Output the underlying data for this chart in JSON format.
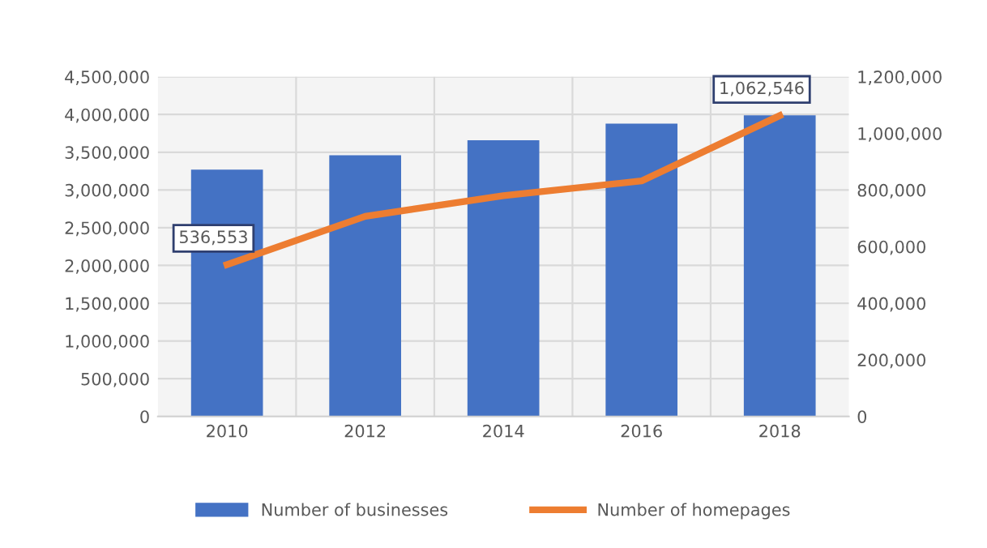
{
  "chart_data": {
    "type": "bar",
    "categories": [
      "2010",
      "2012",
      "2014",
      "2016",
      "2018"
    ],
    "series": [
      {
        "name": "Number of businesses",
        "color": "#4472c4",
        "values": [
          3270000,
          3460000,
          3660000,
          3880000,
          3990000
        ]
      },
      {
        "name": "Number of homepages",
        "type": "line",
        "axis": "y2",
        "color": "#ed7d31",
        "values": [
          536553,
          707000,
          780000,
          832000,
          1062546
        ],
        "value_labels": [
          "536,553",
          null,
          null,
          null,
          "1,062,546"
        ]
      }
    ],
    "ylim": [
      0,
      4500000
    ],
    "yticks": [
      {
        "value": 0,
        "label": "0"
      },
      {
        "value": 500000,
        "label": "500,000"
      },
      {
        "value": 1000000,
        "label": "1,000,000"
      },
      {
        "value": 1500000,
        "label": "1,500,000"
      },
      {
        "value": 2000000,
        "label": "2,000,000"
      },
      {
        "value": 2500000,
        "label": "2,500,000"
      },
      {
        "value": 3000000,
        "label": "3,000,000"
      },
      {
        "value": 3500000,
        "label": "3,500,000"
      },
      {
        "value": 4000000,
        "label": "4,000,000"
      },
      {
        "value": 4500000,
        "label": "4,500,000"
      }
    ],
    "y2lim": [
      0,
      1200000
    ],
    "y2ticks": [
      {
        "value": 0,
        "label": "0"
      },
      {
        "value": 200000,
        "label": "200,000"
      },
      {
        "value": 400000,
        "label": "400,000"
      },
      {
        "value": 600000,
        "label": "600,000"
      },
      {
        "value": 800000,
        "label": "800,000"
      },
      {
        "value": 1000000,
        "label": "1,000,000"
      },
      {
        "value": 1200000,
        "label": "1,200,000"
      }
    ],
    "grid": true,
    "legend": "bottom",
    "marker": "none",
    "line_style": "solid"
  }
}
